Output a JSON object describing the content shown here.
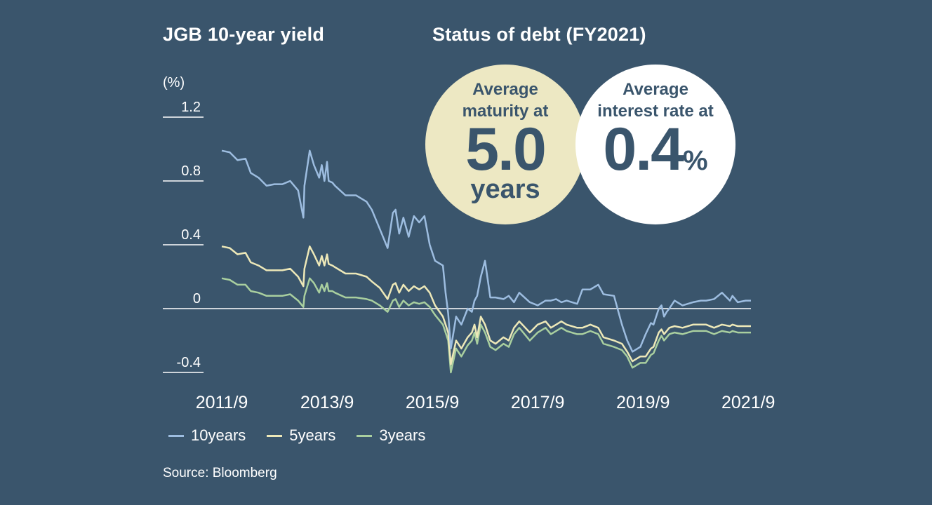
{
  "chart_title": "JGB 10-year yield",
  "panel_title": "Status of debt (FY2021)",
  "source": "Source: Bloomberg",
  "colors": {
    "background": "#3a556c",
    "series_10y": "#9dbde0",
    "series_5y": "#ede8b8",
    "series_3y": "#a9cf9f",
    "bubble_maturity": "#ede8c3",
    "bubble_interest": "#ffffff"
  },
  "bubbles": {
    "maturity": {
      "line1": "Average",
      "line2": "maturity at",
      "value": "5.0",
      "unit": "years"
    },
    "interest": {
      "line1": "Average",
      "line2": "interest rate at",
      "value": "0.4",
      "unit": "%"
    }
  },
  "chart_data": {
    "type": "line",
    "ylabel": "(%)",
    "ylim": [
      -0.4,
      1.2
    ],
    "yticks": [
      "1.2",
      "0.8",
      "0.4",
      "0",
      "-0.4"
    ],
    "ytick_values": [
      1.2,
      0.8,
      0.4,
      0,
      -0.4
    ],
    "xticks": [
      "2011/9",
      "2013/9",
      "2015/9",
      "2017/9",
      "2019/9",
      "2021/9"
    ],
    "xtick_values": [
      2011.75,
      2013.75,
      2015.75,
      2017.75,
      2019.75,
      2021.75
    ],
    "xlim": [
      2011.75,
      2021.8
    ],
    "legend": [
      "10years",
      "5years",
      "3years"
    ],
    "legend_position": "bottom-left",
    "series": [
      {
        "name": "10years",
        "x": [
          2011.75,
          2011.9,
          2012.05,
          2012.2,
          2012.3,
          2012.45,
          2012.6,
          2012.75,
          2012.9,
          2013.05,
          2013.2,
          2013.3,
          2013.32,
          2013.42,
          2013.5,
          2013.6,
          2013.65,
          2013.7,
          2013.75,
          2013.78,
          2013.85,
          2013.9,
          2014.1,
          2014.3,
          2014.5,
          2014.6,
          2014.75,
          2014.9,
          2015.0,
          2015.05,
          2015.12,
          2015.2,
          2015.3,
          2015.4,
          2015.5,
          2015.6,
          2015.7,
          2015.8,
          2015.95,
          2016.0,
          2016.05,
          2016.1,
          2016.2,
          2016.3,
          2016.42,
          2016.5,
          2016.55,
          2016.6,
          2016.67,
          2016.75,
          2016.85,
          2016.95,
          2017.1,
          2017.2,
          2017.3,
          2017.4,
          2017.6,
          2017.75,
          2017.9,
          2018.0,
          2018.1,
          2018.2,
          2018.3,
          2018.5,
          2018.6,
          2018.75,
          2018.9,
          2019.0,
          2019.2,
          2019.35,
          2019.45,
          2019.55,
          2019.7,
          2019.8,
          2019.9,
          2019.95,
          2020.05,
          2020.1,
          2020.15,
          2020.2,
          2020.25,
          2020.35,
          2020.5,
          2020.7,
          2020.85,
          2020.95,
          2021.1,
          2021.25,
          2021.4,
          2021.45,
          2021.55,
          2021.7,
          2021.8
        ],
        "y": [
          0.99,
          0.98,
          0.93,
          0.94,
          0.85,
          0.82,
          0.77,
          0.78,
          0.78,
          0.8,
          0.74,
          0.57,
          0.77,
          0.99,
          0.9,
          0.82,
          0.9,
          0.8,
          0.92,
          0.8,
          0.79,
          0.77,
          0.71,
          0.71,
          0.67,
          0.62,
          0.5,
          0.38,
          0.6,
          0.62,
          0.47,
          0.57,
          0.45,
          0.58,
          0.54,
          0.58,
          0.4,
          0.3,
          0.27,
          0.1,
          -0.03,
          -0.25,
          -0.05,
          -0.1,
          0.0,
          -0.02,
          0.05,
          0.08,
          0.2,
          0.3,
          0.07,
          0.07,
          0.06,
          0.08,
          0.04,
          0.1,
          0.04,
          0.02,
          0.05,
          0.05,
          0.06,
          0.04,
          0.05,
          0.03,
          0.12,
          0.12,
          0.15,
          0.09,
          0.08,
          -0.1,
          -0.2,
          -0.27,
          -0.24,
          -0.16,
          -0.09,
          -0.1,
          0.0,
          0.02,
          -0.05,
          -0.02,
          0.0,
          0.05,
          0.02,
          0.04,
          0.05,
          0.05,
          0.06,
          0.1,
          0.05,
          0.08,
          0.04,
          0.05,
          0.05
        ]
      },
      {
        "name": "5years",
        "x": [
          2011.75,
          2011.9,
          2012.05,
          2012.2,
          2012.3,
          2012.45,
          2012.6,
          2012.75,
          2012.9,
          2013.05,
          2013.2,
          2013.3,
          2013.32,
          2013.42,
          2013.5,
          2013.6,
          2013.65,
          2013.7,
          2013.75,
          2013.78,
          2013.85,
          2013.9,
          2014.1,
          2014.3,
          2014.5,
          2014.6,
          2014.75,
          2014.9,
          2015.0,
          2015.05,
          2015.12,
          2015.2,
          2015.3,
          2015.4,
          2015.5,
          2015.6,
          2015.7,
          2015.8,
          2015.95,
          2016.0,
          2016.05,
          2016.1,
          2016.2,
          2016.3,
          2016.42,
          2016.5,
          2016.55,
          2016.6,
          2016.67,
          2016.75,
          2016.85,
          2016.95,
          2017.1,
          2017.2,
          2017.3,
          2017.4,
          2017.6,
          2017.75,
          2017.9,
          2018.0,
          2018.1,
          2018.2,
          2018.3,
          2018.5,
          2018.6,
          2018.75,
          2018.9,
          2019.0,
          2019.2,
          2019.35,
          2019.45,
          2019.55,
          2019.7,
          2019.8,
          2019.9,
          2019.95,
          2020.05,
          2020.1,
          2020.15,
          2020.2,
          2020.25,
          2020.35,
          2020.5,
          2020.7,
          2020.85,
          2020.95,
          2021.1,
          2021.25,
          2021.4,
          2021.45,
          2021.55,
          2021.7,
          2021.8
        ],
        "y": [
          0.39,
          0.38,
          0.34,
          0.35,
          0.29,
          0.27,
          0.24,
          0.24,
          0.24,
          0.25,
          0.2,
          0.14,
          0.25,
          0.39,
          0.34,
          0.27,
          0.33,
          0.27,
          0.34,
          0.28,
          0.27,
          0.26,
          0.22,
          0.22,
          0.2,
          0.17,
          0.13,
          0.06,
          0.15,
          0.16,
          0.1,
          0.15,
          0.11,
          0.14,
          0.12,
          0.14,
          0.1,
          0.02,
          -0.05,
          -0.1,
          -0.15,
          -0.35,
          -0.2,
          -0.25,
          -0.18,
          -0.15,
          -0.1,
          -0.18,
          -0.05,
          -0.1,
          -0.2,
          -0.22,
          -0.18,
          -0.2,
          -0.12,
          -0.08,
          -0.15,
          -0.1,
          -0.08,
          -0.12,
          -0.1,
          -0.08,
          -0.1,
          -0.12,
          -0.12,
          -0.1,
          -0.12,
          -0.18,
          -0.2,
          -0.22,
          -0.27,
          -0.33,
          -0.3,
          -0.3,
          -0.25,
          -0.24,
          -0.15,
          -0.13,
          -0.16,
          -0.14,
          -0.12,
          -0.11,
          -0.12,
          -0.1,
          -0.1,
          -0.1,
          -0.12,
          -0.1,
          -0.11,
          -0.1,
          -0.11,
          -0.11,
          -0.11
        ]
      },
      {
        "name": "3years",
        "x": [
          2011.75,
          2011.9,
          2012.05,
          2012.2,
          2012.3,
          2012.45,
          2012.6,
          2012.75,
          2012.9,
          2013.05,
          2013.2,
          2013.3,
          2013.32,
          2013.42,
          2013.5,
          2013.6,
          2013.65,
          2013.7,
          2013.75,
          2013.78,
          2013.85,
          2013.9,
          2014.1,
          2014.3,
          2014.5,
          2014.6,
          2014.75,
          2014.9,
          2015.0,
          2015.05,
          2015.12,
          2015.2,
          2015.3,
          2015.4,
          2015.5,
          2015.6,
          2015.7,
          2015.8,
          2015.95,
          2016.0,
          2016.05,
          2016.1,
          2016.2,
          2016.3,
          2016.42,
          2016.5,
          2016.55,
          2016.6,
          2016.67,
          2016.75,
          2016.85,
          2016.95,
          2017.1,
          2017.2,
          2017.3,
          2017.4,
          2017.6,
          2017.75,
          2017.9,
          2018.0,
          2018.1,
          2018.2,
          2018.3,
          2018.5,
          2018.6,
          2018.75,
          2018.9,
          2019.0,
          2019.2,
          2019.35,
          2019.45,
          2019.55,
          2019.7,
          2019.8,
          2019.9,
          2019.95,
          2020.05,
          2020.1,
          2020.15,
          2020.2,
          2020.25,
          2020.35,
          2020.5,
          2020.7,
          2020.85,
          2020.95,
          2021.1,
          2021.25,
          2021.4,
          2021.45,
          2021.55,
          2021.7,
          2021.8
        ],
        "y": [
          0.19,
          0.18,
          0.15,
          0.15,
          0.11,
          0.1,
          0.08,
          0.08,
          0.08,
          0.09,
          0.05,
          0.01,
          0.08,
          0.19,
          0.16,
          0.1,
          0.15,
          0.11,
          0.16,
          0.11,
          0.11,
          0.1,
          0.07,
          0.07,
          0.06,
          0.05,
          0.02,
          -0.02,
          0.05,
          0.06,
          0.01,
          0.05,
          0.02,
          0.04,
          0.03,
          0.04,
          0.01,
          -0.04,
          -0.1,
          -0.15,
          -0.2,
          -0.4,
          -0.25,
          -0.3,
          -0.23,
          -0.2,
          -0.15,
          -0.22,
          -0.1,
          -0.15,
          -0.24,
          -0.26,
          -0.22,
          -0.24,
          -0.16,
          -0.12,
          -0.2,
          -0.15,
          -0.12,
          -0.16,
          -0.14,
          -0.12,
          -0.14,
          -0.16,
          -0.16,
          -0.14,
          -0.16,
          -0.22,
          -0.24,
          -0.26,
          -0.3,
          -0.37,
          -0.34,
          -0.34,
          -0.29,
          -0.28,
          -0.2,
          -0.17,
          -0.2,
          -0.18,
          -0.16,
          -0.15,
          -0.16,
          -0.14,
          -0.14,
          -0.14,
          -0.16,
          -0.14,
          -0.15,
          -0.14,
          -0.15,
          -0.15,
          -0.15
        ]
      }
    ]
  }
}
